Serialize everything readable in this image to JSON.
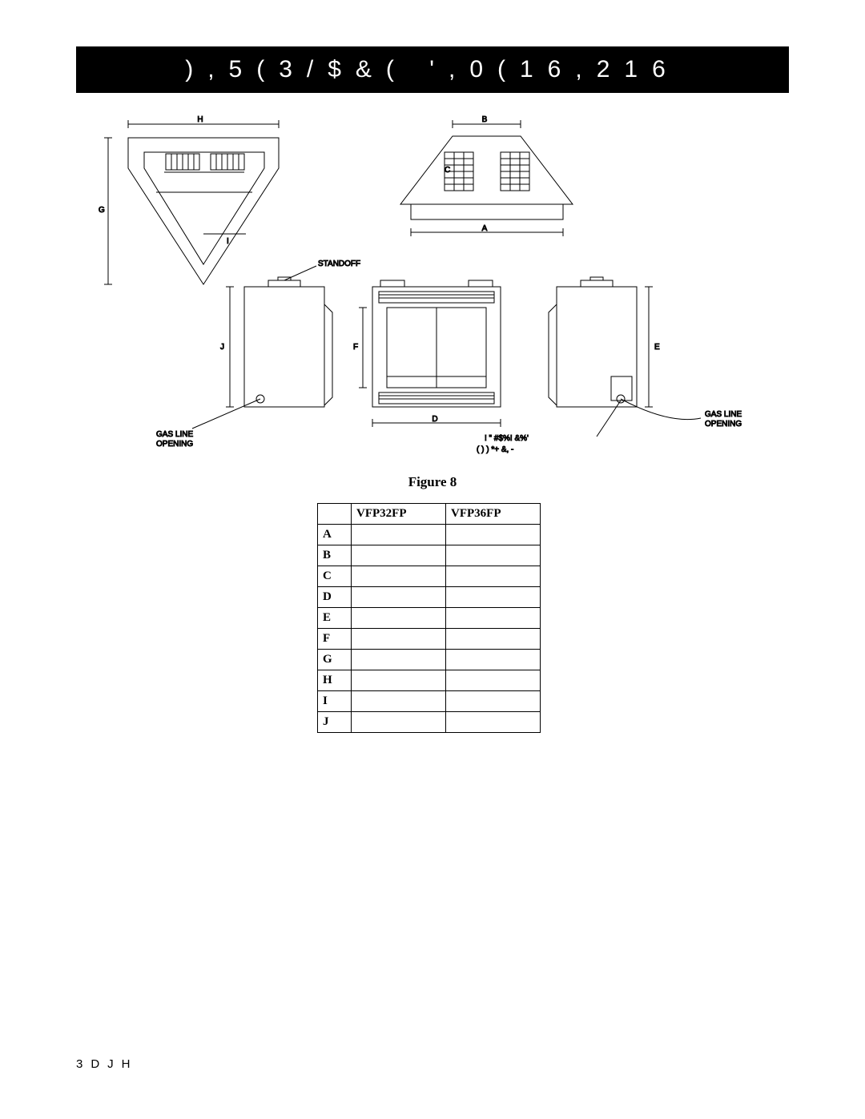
{
  "title": "),5(3/$&( ',0(16,216",
  "figure": {
    "caption": "Figure 8",
    "labels": {
      "standoff": "STANDOFF",
      "gas_line": "GAS LINE",
      "opening": "OPENING",
      "misc1": "! \"  #$%!  &%'",
      "misc2": "( ) ) *+  &, -",
      "A": "A",
      "B": "B",
      "C": "C",
      "D": "D",
      "E": "E",
      "F": "F",
      "G": "G",
      "H": "H",
      "I": "I",
      "J": "J"
    }
  },
  "table": {
    "headers": [
      "",
      "VFP32FP",
      "VFP36FP"
    ],
    "rows": [
      {
        "label": "A",
        "v1": "",
        "v2": ""
      },
      {
        "label": "B",
        "v1": "",
        "v2": ""
      },
      {
        "label": "C",
        "v1": "",
        "v2": ""
      },
      {
        "label": "D",
        "v1": "",
        "v2": ""
      },
      {
        "label": "E",
        "v1": "",
        "v2": ""
      },
      {
        "label": "F",
        "v1": "",
        "v2": ""
      },
      {
        "label": "G",
        "v1": "",
        "v2": ""
      },
      {
        "label": "H",
        "v1": "",
        "v2": ""
      },
      {
        "label": "I",
        "v1": "",
        "v2": ""
      },
      {
        "label": "J",
        "v1": "",
        "v2": ""
      }
    ]
  },
  "footer": "3DJH",
  "colors": {
    "title_bg": "#000000",
    "title_fg": "#ffffff",
    "page_bg": "#ffffff",
    "line": "#000000"
  }
}
